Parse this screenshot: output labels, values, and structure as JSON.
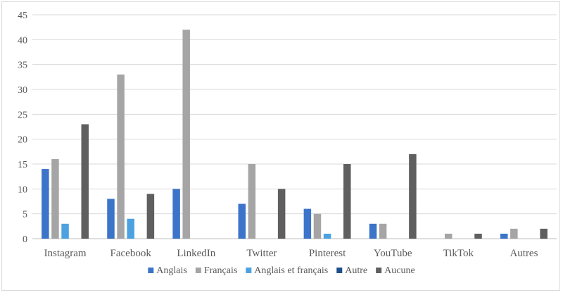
{
  "chart_data": {
    "type": "bar",
    "title": "",
    "xlabel": "",
    "ylabel": "",
    "ylim": [
      0,
      45
    ],
    "yticks": [
      0,
      5,
      10,
      15,
      20,
      25,
      30,
      35,
      40,
      45
    ],
    "grid": "horizontal",
    "legend_position": "bottom",
    "categories": [
      "Instagram",
      "Facebook",
      "LinkedIn",
      "Twitter",
      "Pinterest",
      "YouTube",
      "TikTok",
      "Autres"
    ],
    "series": [
      {
        "name": "Anglais",
        "color": "#3b74c9",
        "values": [
          14,
          8,
          10,
          7,
          6,
          3,
          0,
          1
        ]
      },
      {
        "name": "Français",
        "color": "#a5a5a5",
        "values": [
          16,
          33,
          42,
          15,
          5,
          3,
          1,
          2
        ]
      },
      {
        "name": "Anglais et français",
        "color": "#4ca2e0",
        "values": [
          3,
          4,
          0,
          0,
          1,
          0,
          0,
          0
        ]
      },
      {
        "name": "Autre",
        "color": "#1f4e8c",
        "values": [
          0,
          0,
          0,
          0,
          0,
          0,
          0,
          0
        ]
      },
      {
        "name": "Aucune",
        "color": "#5f5f5f",
        "values": [
          23,
          9,
          0,
          10,
          15,
          17,
          1,
          2
        ]
      }
    ]
  }
}
